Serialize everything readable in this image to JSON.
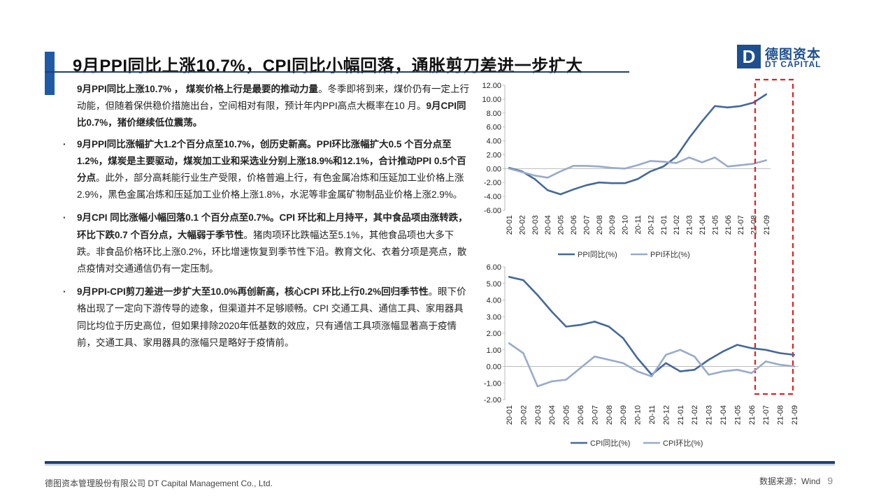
{
  "header": {
    "title": "9月PPI同比上涨10.7%，CPI同比小幅回落，通胀剪刀差进一步扩大",
    "logo_mark": "D",
    "logo_cn": "德图资本",
    "logo_en": "DT CAPITAL"
  },
  "intro": {
    "bold1": "9月PPI同比上涨10.7% ，  煤炭价格上行是最要的推动力量",
    "normal1": "。冬季即将到来，煤价仍有一定上行动能，但随着保供稳价措施出台，空间相对有限，预计年内PPI高点大概率在10 月。",
    "bold2": "9月CPI同比0.7%，猪价继续低位震荡。"
  },
  "bullets": [
    {
      "marker": "·",
      "bold": "9月PPI同比涨幅扩大1.2个百分点至10.7%，创历史新高。PPI环比涨幅扩大0.5 个百分点至1.2%，煤炭是主要驱动，煤炭加工业和采选业分别上涨18.9%和12.1%，合计推动PPI 0.5个百分点",
      "normal": "。此外，部分高耗能行业生产受限，价格普遍上行，有色金属冶炼和压延加工业价格上涨2.9%，黑色金属冶炼和压延加工业价格上涨1.8%，水泥等非金属矿物制品业价格上涨2.9%。"
    },
    {
      "marker": "·",
      "bold": "9月CPI 同比涨幅小幅回落0.1 个百分点至0.7%。CPI 环比和上月持平，其中食品项由涨转跌，环比下跌0.7 个百分点，大幅弱于季节性",
      "normal": "。猪肉项环比跌幅达至5.1%，其他食品项也大多下跌。非食品价格环比上涨0.2%，环比增速恢复到季节性下沿。教育文化、衣着分项是亮点，散点疫情对交通通信仍有一定压制。"
    },
    {
      "marker": "·",
      "bold": "9月PPI-CPI剪刀差进一步扩大至10.0%再创新高，核心CPI 环比上行0.2%回归季节性",
      "normal": "。眼下价格出现了一定向下游传导的迹象，但渠道并不足够顺畅。CPI 交通工具、通信工具、家用器具同比均位于历史高位，但如果排除2020年低基数的效应，只有通信工具项涨幅显著高于疫情前，交通工具、家用器具的涨幅只是略好于疫情前。"
    }
  ],
  "footer": {
    "company": "德图资本管理股份有限公司 DT Capital Management Co., Ltd.",
    "source": "数据来源：Wind",
    "page": "9"
  },
  "chart_data": [
    {
      "type": "line",
      "categories": [
        "20-01",
        "20-02",
        "20-03",
        "20-04",
        "20-05",
        "20-06",
        "20-07",
        "20-08",
        "20-09",
        "20-10",
        "20-11",
        "20-12",
        "21-01",
        "21-02",
        "21-03",
        "21-04",
        "21-05",
        "21-06",
        "21-07",
        "21-08",
        "21-09"
      ],
      "series": [
        {
          "name": "PPI同比(%)",
          "color": "#44689a",
          "values": [
            0.1,
            -0.4,
            -1.5,
            -3.1,
            -3.7,
            -3.0,
            -2.4,
            -2.0,
            -2.1,
            -2.1,
            -1.5,
            -0.4,
            0.3,
            1.7,
            4.4,
            6.8,
            9.0,
            8.8,
            9.0,
            9.5,
            10.7
          ]
        },
        {
          "name": "PPI环比(%)",
          "color": "#97abc9",
          "values": [
            0.0,
            -0.5,
            -1.0,
            -1.3,
            -0.4,
            0.4,
            0.4,
            0.3,
            0.1,
            0.0,
            0.5,
            1.1,
            1.0,
            0.8,
            1.6,
            0.9,
            1.6,
            0.3,
            0.5,
            0.7,
            1.2
          ]
        }
      ],
      "y_ticks": [
        "12.00",
        "10.00",
        "8.00",
        "6.00",
        "4.00",
        "2.00",
        "0.00",
        "-2.00",
        "-4.00",
        "-6.00"
      ],
      "ylim": [
        -6,
        12
      ],
      "highlight_categories": [
        "21-08",
        "21-09"
      ]
    },
    {
      "type": "line",
      "categories": [
        "20-01",
        "20-02",
        "20-03",
        "20-04",
        "20-05",
        "20-06",
        "20-07",
        "20-08",
        "20-09",
        "20-10",
        "20-11",
        "20-12",
        "21-01",
        "21-02",
        "21-03",
        "21-04",
        "21-05",
        "21-06",
        "21-07",
        "21-08",
        "21-09"
      ],
      "series": [
        {
          "name": "CPI同比(%)",
          "color": "#44689a",
          "values": [
            5.4,
            5.2,
            4.3,
            3.3,
            2.4,
            2.5,
            2.7,
            2.4,
            1.7,
            0.5,
            -0.5,
            0.2,
            -0.3,
            -0.2,
            0.4,
            0.9,
            1.3,
            1.1,
            1.0,
            0.8,
            0.7
          ]
        },
        {
          "name": "CPI环比(%)",
          "color": "#97abc9",
          "values": [
            1.4,
            0.8,
            -1.2,
            -0.9,
            -0.8,
            -0.1,
            0.6,
            0.4,
            0.2,
            -0.3,
            -0.6,
            0.7,
            1.0,
            0.6,
            -0.5,
            -0.3,
            -0.2,
            -0.4,
            0.3,
            0.1,
            0.0
          ]
        }
      ],
      "y_ticks": [
        "6.00",
        "5.00",
        "4.00",
        "3.00",
        "2.00",
        "1.00",
        "0.00",
        "-1.00",
        "-2.00"
      ],
      "ylim": [
        -2,
        6
      ],
      "highlight_categories": [
        "21-08",
        "21-09"
      ]
    }
  ]
}
